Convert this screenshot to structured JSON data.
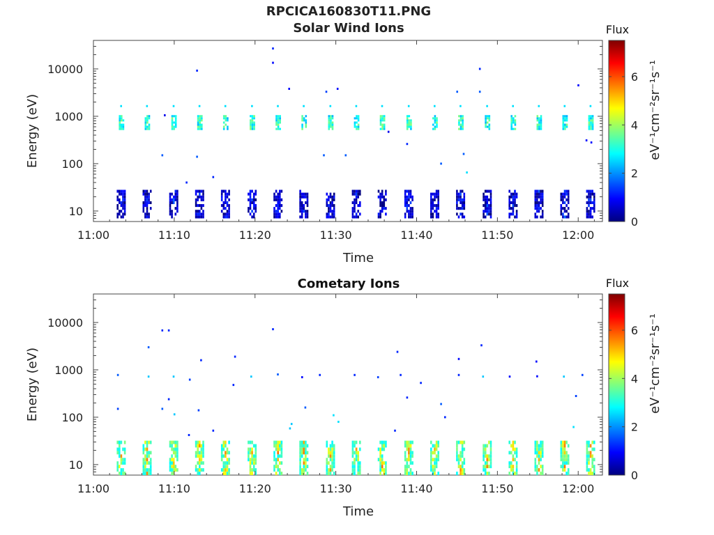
{
  "figure": {
    "title": "RPCICA160830T11.PNG"
  },
  "chart_data": [
    {
      "type": "heatmap",
      "title": "Solar Wind Ions",
      "xlabel": "Time",
      "ylabel": "Energy (eV)",
      "x_ticks": [
        "11:00",
        "11:10",
        "11:20",
        "11:30",
        "11:40",
        "11:50",
        "12:00"
      ],
      "y_ticks": [
        "10",
        "100",
        "1000",
        "10000"
      ],
      "y_scale": "log",
      "ylim": [
        6,
        40000
      ],
      "xlim_minutes": [
        0,
        63
      ],
      "colorbar": {
        "label": "Flux",
        "unit_label": "eV⁻¹cm⁻²sr⁻¹s⁻¹",
        "ticks": [
          "0",
          "2",
          "4",
          "6"
        ],
        "range": [
          0,
          7.5
        ]
      },
      "colormap": [
        "#00007f",
        "#0000ff",
        "#007fff",
        "#00ffff",
        "#7fff7f",
        "#ffff00",
        "#ff7f00",
        "#ff0000",
        "#7f0000"
      ],
      "sweep_minutes": [
        3.4,
        6.6,
        9.9,
        13.1,
        16.3,
        19.6,
        22.8,
        26.0,
        29.3,
        32.5,
        35.7,
        39.0,
        42.2,
        45.4,
        48.7,
        51.9,
        55.1,
        58.3,
        61.5
      ],
      "high_band": {
        "energy_center": 700,
        "energy_top": 1600,
        "flux": 3.2
      },
      "low_band": {
        "energy_range": [
          7,
          28
        ],
        "flux": 1.6
      },
      "scatter_points": [
        [
          22.2,
          27000,
          1.2
        ],
        [
          22.2,
          13500,
          1.0
        ],
        [
          12.8,
          9200,
          1.2
        ],
        [
          47.8,
          10000,
          1.2
        ],
        [
          60.0,
          4500,
          1.0
        ],
        [
          24.2,
          3800,
          1.0
        ],
        [
          30.2,
          3800,
          1.0
        ],
        [
          28.8,
          3300,
          1.4
        ],
        [
          45.0,
          3300,
          1.6
        ],
        [
          47.8,
          3300,
          1.6
        ],
        [
          8.8,
          1050,
          0.8
        ],
        [
          36.5,
          470,
          0.8
        ],
        [
          38.8,
          260,
          1.2
        ],
        [
          8.5,
          150,
          1.6
        ],
        [
          12.8,
          140,
          1.6
        ],
        [
          28.5,
          150,
          1.6
        ],
        [
          31.2,
          150,
          1.6
        ],
        [
          43.0,
          100,
          1.6
        ],
        [
          45.8,
          160,
          1.6
        ],
        [
          46.2,
          65,
          2.6
        ],
        [
          11.5,
          40,
          1.2
        ],
        [
          14.8,
          52,
          1.2
        ],
        [
          61.0,
          310,
          1.0
        ],
        [
          61.6,
          280,
          1.0
        ]
      ]
    },
    {
      "type": "heatmap",
      "title": "Cometary Ions",
      "xlabel": "Time",
      "ylabel": "Energy (eV)",
      "x_ticks": [
        "11:00",
        "11:10",
        "11:20",
        "11:30",
        "11:40",
        "11:50",
        "12:00"
      ],
      "y_ticks": [
        "10",
        "100",
        "1000",
        "10000"
      ],
      "y_scale": "log",
      "ylim": [
        6,
        40000
      ],
      "xlim_minutes": [
        0,
        63
      ],
      "colorbar": {
        "label": "Flux",
        "unit_label": "eV⁻¹cm⁻²sr⁻¹s⁻¹",
        "ticks": [
          "0",
          "2",
          "4",
          "6"
        ],
        "range": [
          0,
          7.5
        ]
      },
      "colormap": [
        "#00007f",
        "#0000ff",
        "#007fff",
        "#00ffff",
        "#7fff7f",
        "#ffff00",
        "#ff7f00",
        "#ff0000",
        "#7f0000"
      ],
      "sweep_minutes": [
        3.4,
        6.6,
        9.9,
        13.1,
        16.3,
        19.6,
        22.8,
        26.0,
        29.3,
        32.5,
        35.7,
        39.0,
        42.2,
        45.4,
        48.7,
        51.9,
        55.1,
        58.3,
        61.5
      ],
      "low_band": {
        "energy_range": [
          6,
          32
        ],
        "flux": 5.0
      },
      "scatter_points": [
        [
          8.5,
          6800,
          1.2
        ],
        [
          9.3,
          6800,
          1.2
        ],
        [
          22.2,
          7200,
          1.2
        ],
        [
          6.8,
          3000,
          1.6
        ],
        [
          37.6,
          2400,
          1.2
        ],
        [
          48.0,
          3300,
          1.2
        ],
        [
          13.3,
          1600,
          1.2
        ],
        [
          17.5,
          1900,
          1.2
        ],
        [
          45.2,
          1700,
          1.0
        ],
        [
          54.8,
          1500,
          1.0
        ],
        [
          3.0,
          780,
          1.6
        ],
        [
          6.8,
          720,
          2.4
        ],
        [
          9.9,
          720,
          2.4
        ],
        [
          11.9,
          620,
          1.4
        ],
        [
          17.3,
          480,
          1.2
        ],
        [
          19.5,
          720,
          2.4
        ],
        [
          22.8,
          800,
          1.6
        ],
        [
          25.8,
          700,
          1.0
        ],
        [
          28.0,
          780,
          1.2
        ],
        [
          32.3,
          780,
          1.2
        ],
        [
          35.2,
          700,
          1.4
        ],
        [
          38.0,
          780,
          1.2
        ],
        [
          40.5,
          530,
          1.2
        ],
        [
          45.2,
          780,
          1.2
        ],
        [
          48.2,
          720,
          2.4
        ],
        [
          51.5,
          720,
          1.0
        ],
        [
          54.9,
          730,
          1.0
        ],
        [
          58.2,
          720,
          2.4
        ],
        [
          60.5,
          780,
          1.4
        ],
        [
          3.0,
          150,
          1.4
        ],
        [
          8.5,
          150,
          1.6
        ],
        [
          9.3,
          240,
          1.2
        ],
        [
          10.0,
          115,
          2.4
        ],
        [
          13.0,
          140,
          1.4
        ],
        [
          11.8,
          42,
          1.2
        ],
        [
          14.8,
          52,
          1.2
        ],
        [
          24.3,
          58,
          2.4
        ],
        [
          24.5,
          72,
          2.4
        ],
        [
          26.2,
          160,
          1.6
        ],
        [
          29.7,
          110,
          2.6
        ],
        [
          30.3,
          80,
          2.6
        ],
        [
          37.3,
          52,
          1.2
        ],
        [
          38.8,
          260,
          1.2
        ],
        [
          43.0,
          190,
          1.6
        ],
        [
          43.5,
          100,
          1.2
        ],
        [
          59.7,
          280,
          1.4
        ],
        [
          59.4,
          62,
          2.6
        ]
      ]
    }
  ]
}
